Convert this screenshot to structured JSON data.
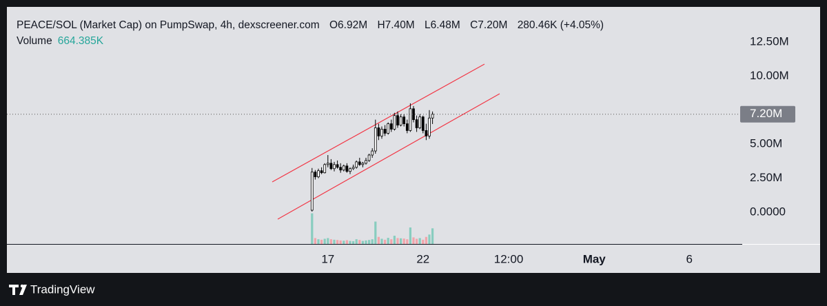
{
  "chart_data": {
    "type": "candlestick",
    "title": "PEACE/SOL (Market Cap) on PumpSwap, 4h, dexscreener.com",
    "ohlc_names": [
      "O",
      "H",
      "L",
      "C"
    ],
    "last_labels": [
      "6.92M",
      "7.40M",
      "6.48M",
      "7.20M"
    ],
    "change_label": "280.46K (+4.05%)",
    "volume_title": "Volume",
    "volume_label": "664.385K",
    "x": [
      "04-16 04:00",
      "04-16 08:00",
      "04-16 12:00",
      "04-16 16:00",
      "04-16 20:00",
      "04-17 00:00",
      "04-17 04:00",
      "04-17 08:00",
      "04-17 12:00",
      "04-17 16:00",
      "04-17 20:00",
      "04-18 00:00",
      "04-18 04:00",
      "04-18 08:00",
      "04-18 12:00",
      "04-18 16:00",
      "04-18 20:00",
      "04-19 00:00",
      "04-19 04:00",
      "04-19 08:00",
      "04-19 12:00",
      "04-19 16:00",
      "04-19 20:00",
      "04-20 00:00",
      "04-20 04:00",
      "04-20 08:00",
      "04-20 12:00",
      "04-20 16:00",
      "04-20 20:00",
      "04-21 00:00",
      "04-21 04:00",
      "04-21 08:00",
      "04-21 12:00",
      "04-21 16:00",
      "04-21 20:00",
      "04-22 00:00",
      "04-22 04:00",
      "04-22 08:00",
      "04-22 12:00"
    ],
    "open": [
      0.15,
      2.95,
      2.6,
      3.05,
      2.9,
      3.5,
      3.6,
      3.2,
      3.5,
      3.3,
      3.1,
      3.4,
      3.0,
      3.2,
      3.3,
      3.7,
      3.5,
      3.6,
      3.8,
      4.2,
      4.5,
      6.2,
      5.6,
      6.1,
      5.8,
      6.5,
      6.1,
      7.1,
      6.4,
      7.0,
      6.5,
      6.0,
      7.6,
      6.8,
      6.2,
      7.0,
      6.0,
      5.6,
      6.92
    ],
    "high": [
      3.25,
      3.1,
      3.2,
      3.3,
      3.6,
      4.2,
      3.9,
      3.7,
      3.8,
      3.6,
      3.5,
      3.6,
      3.3,
      3.5,
      3.8,
      4.0,
      3.7,
      4.0,
      4.3,
      4.7,
      6.8,
      6.5,
      6.3,
      6.4,
      6.6,
      6.8,
      7.3,
      7.4,
      7.2,
      7.2,
      6.8,
      8.0,
      7.8,
      7.1,
      7.2,
      7.1,
      6.5,
      7.5,
      7.4
    ],
    "low": [
      0.05,
      2.4,
      2.5,
      2.8,
      2.85,
      3.3,
      3.1,
      3.0,
      3.2,
      2.9,
      3.0,
      2.9,
      2.8,
      3.1,
      3.2,
      3.4,
      3.3,
      3.5,
      3.7,
      4.0,
      4.3,
      5.3,
      5.4,
      5.6,
      5.7,
      5.9,
      6.0,
      6.2,
      6.3,
      6.3,
      5.8,
      5.9,
      6.6,
      5.9,
      6.1,
      5.8,
      5.3,
      5.4,
      6.48
    ],
    "close": [
      2.95,
      2.6,
      3.05,
      2.9,
      3.5,
      3.6,
      3.2,
      3.5,
      3.3,
      3.1,
      3.4,
      3.0,
      3.2,
      3.3,
      3.7,
      3.5,
      3.6,
      3.8,
      4.2,
      4.5,
      6.2,
      5.6,
      6.1,
      5.8,
      6.5,
      6.1,
      7.1,
      6.4,
      7.0,
      6.5,
      6.0,
      7.6,
      6.8,
      6.2,
      7.0,
      6.0,
      5.6,
      6.92,
      7.2
    ],
    "volume": [
      1300,
      250,
      200,
      180,
      220,
      250,
      200,
      180,
      170,
      150,
      140,
      160,
      130,
      120,
      200,
      170,
      130,
      150,
      170,
      200,
      950,
      300,
      220,
      180,
      260,
      200,
      350,
      250,
      240,
      230,
      200,
      700,
      280,
      220,
      250,
      180,
      300,
      400,
      664.385
    ],
    "up_color": "#ffffff",
    "down_color": "#000000",
    "volume_up_color": "#89cdbf",
    "volume_down_color": "#f2a5ab",
    "ylim": [
      -2.33,
      14.98
    ],
    "yticks": [
      {
        "value": 0,
        "label": "0.0000"
      },
      {
        "value": 2.5,
        "label": "2.50M"
      },
      {
        "value": 5,
        "label": "5.00M"
      },
      {
        "value": 10,
        "label": "10.00M"
      },
      {
        "value": 12.5,
        "label": "12.50M"
      }
    ],
    "volume_ylim": [
      0,
      10000
    ],
    "xlim": [
      "03-31 03:00",
      "05-08 17:00"
    ],
    "xticks": [
      {
        "value": "04-17 00:00",
        "label": "17"
      },
      {
        "value": "04-22 00:00",
        "label": "22"
      },
      {
        "value": "04-26 12:00",
        "label": "12:00"
      },
      {
        "value": "05-01 00:00",
        "label": "May"
      },
      {
        "value": "05-06 00:00",
        "label": "6"
      }
    ]
  },
  "footer": {
    "brand": "TradingView"
  }
}
